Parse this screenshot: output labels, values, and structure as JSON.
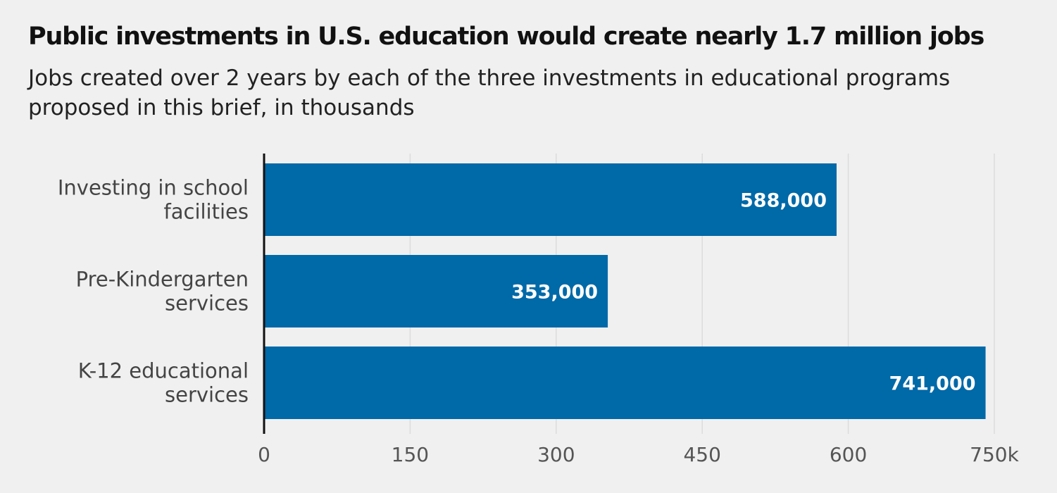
{
  "chart_data": {
    "type": "bar",
    "orientation": "horizontal",
    "title": "Public investments in U.S. education would create nearly 1.7 million jobs",
    "subtitle": "Jobs created over 2 years by each of the three investments in educational programs proposed in this brief, in thousands",
    "categories": [
      [
        "Investing in school",
        "facilities"
      ],
      [
        "Pre-Kindergarten",
        "services"
      ],
      [
        "K-12 educational",
        "services"
      ]
    ],
    "values": [
      588,
      353,
      741
    ],
    "value_labels": [
      "588,000",
      "353,000",
      "741,000"
    ],
    "xlim": [
      0,
      750
    ],
    "ticks": [
      0,
      150,
      300,
      450,
      600,
      750
    ],
    "tick_labels": [
      "0",
      "150",
      "300",
      "450",
      "600",
      "750k"
    ],
    "grid": true,
    "bar_color": "#0069a8",
    "grid_color": "#dcdcdc",
    "axis_color": "#111111"
  }
}
